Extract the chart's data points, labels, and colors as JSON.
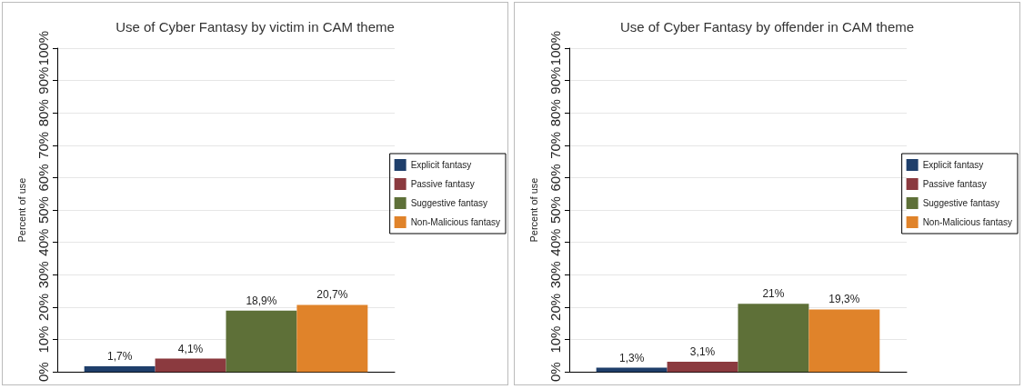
{
  "chart_data": [
    {
      "type": "bar",
      "title": "Use of Cyber Fantasy by victim in CAM theme",
      "ylabel": "Percent of use",
      "categories": [
        null
      ],
      "ylim": [
        0,
        100
      ],
      "yticks": [
        {
          "value": 0,
          "label": "0%"
        },
        {
          "value": 10,
          "label": "10%"
        },
        {
          "value": 20,
          "label": "20%"
        },
        {
          "value": 30,
          "label": "30%"
        },
        {
          "value": 40,
          "label": "40%"
        },
        {
          "value": 50,
          "label": "50%"
        },
        {
          "value": 60,
          "label": "60%"
        },
        {
          "value": 70,
          "label": "70%"
        },
        {
          "value": 80,
          "label": "80%"
        },
        {
          "value": 90,
          "label": "90%"
        },
        {
          "value": 100,
          "label": "100%"
        }
      ],
      "grid": "y",
      "legend": "right",
      "series": [
        {
          "name": "Explicit fantasy",
          "color": "#1f3f6b",
          "values": [
            1.7
          ],
          "value_labels": [
            "1,7%"
          ]
        },
        {
          "name": "Passive fantasy",
          "color": "#8b3a3f",
          "values": [
            4.1
          ],
          "value_labels": [
            "4,1%"
          ]
        },
        {
          "name": "Suggestive fantasy",
          "color": "#5e7038",
          "values": [
            18.9
          ],
          "value_labels": [
            "18,9%"
          ]
        },
        {
          "name": "Non-Malicious fantasy",
          "color": "#e0832a",
          "values": [
            20.7
          ],
          "value_labels": [
            "20,7%"
          ]
        }
      ]
    },
    {
      "type": "bar",
      "title": "Use of Cyber Fantasy by offender in CAM theme",
      "ylabel": "Percent of use",
      "categories": [
        null
      ],
      "ylim": [
        0,
        100
      ],
      "yticks": [
        {
          "value": 0,
          "label": "0%"
        },
        {
          "value": 10,
          "label": "10%"
        },
        {
          "value": 20,
          "label": "20%"
        },
        {
          "value": 30,
          "label": "30%"
        },
        {
          "value": 40,
          "label": "40%"
        },
        {
          "value": 50,
          "label": "50%"
        },
        {
          "value": 60,
          "label": "60%"
        },
        {
          "value": 70,
          "label": "70%"
        },
        {
          "value": 80,
          "label": "80%"
        },
        {
          "value": 90,
          "label": "90%"
        },
        {
          "value": 100,
          "label": "100%"
        }
      ],
      "grid": "y",
      "legend": "right",
      "series": [
        {
          "name": "Explicit fantasy",
          "color": "#1f3f6b",
          "values": [
            1.3
          ],
          "value_labels": [
            "1,3%"
          ]
        },
        {
          "name": "Passive fantasy",
          "color": "#8b3a3f",
          "values": [
            3.1
          ],
          "value_labels": [
            "3,1%"
          ]
        },
        {
          "name": "Suggestive fantasy",
          "color": "#5e7038",
          "values": [
            21
          ],
          "value_labels": [
            "21%"
          ]
        },
        {
          "name": "Non-Malicious fantasy",
          "color": "#e0832a",
          "values": [
            19.3
          ],
          "value_labels": [
            "19,3%"
          ]
        }
      ]
    }
  ]
}
